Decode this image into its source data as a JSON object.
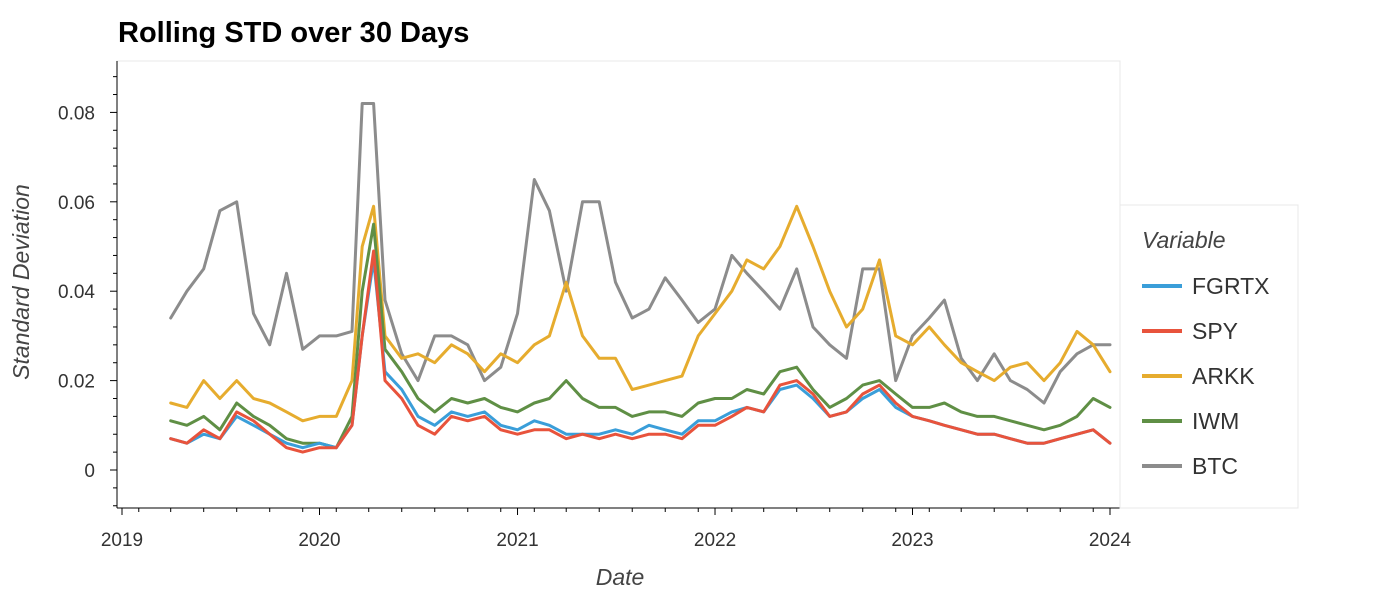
{
  "chart_data": {
    "type": "line",
    "title": "Rolling STD over 30 Days",
    "xlabel": "Date",
    "ylabel": "Standard Deviation",
    "x_ticks": [
      "2019",
      "2020",
      "2021",
      "2022",
      "2023",
      "2024"
    ],
    "y_ticks": [
      "0",
      "0.02",
      "0.04",
      "0.06",
      "0.08"
    ],
    "xlim": [
      "2019-01-01",
      "2024-01-01"
    ],
    "ylim": [
      -0.0085,
      0.0915
    ],
    "grid": false,
    "legend": {
      "title": "Variable",
      "placement": "right"
    },
    "x": [
      "2019-04-01",
      "2019-05-01",
      "2019-06-01",
      "2019-07-01",
      "2019-08-01",
      "2019-09-01",
      "2019-10-01",
      "2019-11-01",
      "2019-12-01",
      "2020-01-01",
      "2020-02-01",
      "2020-03-01",
      "2020-03-20",
      "2020-04-10",
      "2020-05-01",
      "2020-06-01",
      "2020-07-01",
      "2020-08-01",
      "2020-09-01",
      "2020-10-01",
      "2020-11-01",
      "2020-12-01",
      "2021-01-01",
      "2021-02-01",
      "2021-03-01",
      "2021-04-01",
      "2021-05-01",
      "2021-06-01",
      "2021-07-01",
      "2021-08-01",
      "2021-09-01",
      "2021-10-01",
      "2021-11-01",
      "2021-12-01",
      "2022-01-01",
      "2022-02-01",
      "2022-03-01",
      "2022-04-01",
      "2022-05-01",
      "2022-06-01",
      "2022-07-01",
      "2022-08-01",
      "2022-09-01",
      "2022-10-01",
      "2022-11-01",
      "2022-12-01",
      "2023-01-01",
      "2023-02-01",
      "2023-03-01",
      "2023-04-01",
      "2023-05-01",
      "2023-06-01",
      "2023-07-01",
      "2023-08-01",
      "2023-09-01",
      "2023-10-01",
      "2023-11-01",
      "2023-12-01",
      "2024-01-01"
    ],
    "series": [
      {
        "name": "FGRTX",
        "color": "#3a9ed9",
        "values": [
          0.007,
          0.006,
          0.008,
          0.007,
          0.012,
          0.01,
          0.008,
          0.006,
          0.005,
          0.006,
          0.005,
          0.01,
          0.03,
          0.047,
          0.022,
          0.018,
          0.012,
          0.01,
          0.013,
          0.012,
          0.013,
          0.01,
          0.009,
          0.011,
          0.01,
          0.008,
          0.008,
          0.008,
          0.009,
          0.008,
          0.01,
          0.009,
          0.008,
          0.011,
          0.011,
          0.013,
          0.014,
          0.013,
          0.018,
          0.019,
          0.016,
          0.012,
          0.013,
          0.016,
          0.018,
          0.014,
          0.012,
          0.011,
          0.01,
          0.009,
          0.008,
          0.008,
          0.007,
          0.006,
          0.006,
          0.007,
          0.008,
          0.009,
          0.006
        ]
      },
      {
        "name": "SPY",
        "color": "#e8533c",
        "values": [
          0.007,
          0.006,
          0.009,
          0.007,
          0.013,
          0.011,
          0.008,
          0.005,
          0.004,
          0.005,
          0.005,
          0.01,
          0.03,
          0.049,
          0.02,
          0.016,
          0.01,
          0.008,
          0.012,
          0.011,
          0.012,
          0.009,
          0.008,
          0.009,
          0.009,
          0.007,
          0.008,
          0.007,
          0.008,
          0.007,
          0.008,
          0.008,
          0.007,
          0.01,
          0.01,
          0.012,
          0.014,
          0.013,
          0.019,
          0.02,
          0.017,
          0.012,
          0.013,
          0.017,
          0.019,
          0.015,
          0.012,
          0.011,
          0.01,
          0.009,
          0.008,
          0.008,
          0.007,
          0.006,
          0.006,
          0.007,
          0.008,
          0.009,
          0.006
        ]
      },
      {
        "name": "ARKK",
        "color": "#e6ac2e",
        "values": [
          0.015,
          0.014,
          0.02,
          0.016,
          0.02,
          0.016,
          0.015,
          0.013,
          0.011,
          0.012,
          0.012,
          0.02,
          0.05,
          0.059,
          0.03,
          0.025,
          0.026,
          0.024,
          0.028,
          0.026,
          0.022,
          0.026,
          0.024,
          0.028,
          0.03,
          0.042,
          0.03,
          0.025,
          0.025,
          0.018,
          0.019,
          0.02,
          0.021,
          0.03,
          0.035,
          0.04,
          0.047,
          0.045,
          0.05,
          0.059,
          0.05,
          0.04,
          0.032,
          0.036,
          0.047,
          0.03,
          0.028,
          0.032,
          0.028,
          0.024,
          0.022,
          0.02,
          0.023,
          0.024,
          0.02,
          0.024,
          0.031,
          0.028,
          0.022
        ]
      },
      {
        "name": "IWM",
        "color": "#5f8f45",
        "values": [
          0.011,
          0.01,
          0.012,
          0.009,
          0.015,
          0.012,
          0.01,
          0.007,
          0.006,
          0.006,
          0.005,
          0.012,
          0.04,
          0.055,
          0.027,
          0.022,
          0.016,
          0.013,
          0.016,
          0.015,
          0.016,
          0.014,
          0.013,
          0.015,
          0.016,
          0.02,
          0.016,
          0.014,
          0.014,
          0.012,
          0.013,
          0.013,
          0.012,
          0.015,
          0.016,
          0.016,
          0.018,
          0.017,
          0.022,
          0.023,
          0.018,
          0.014,
          0.016,
          0.019,
          0.02,
          0.017,
          0.014,
          0.014,
          0.015,
          0.013,
          0.012,
          0.012,
          0.011,
          0.01,
          0.009,
          0.01,
          0.012,
          0.016,
          0.014
        ]
      },
      {
        "name": "BTC",
        "color": "#8c8c8c",
        "values": [
          0.034,
          0.04,
          0.045,
          0.058,
          0.06,
          0.035,
          0.028,
          0.044,
          0.027,
          0.03,
          0.03,
          0.031,
          0.082,
          0.082,
          0.038,
          0.026,
          0.02,
          0.03,
          0.03,
          0.028,
          0.02,
          0.023,
          0.035,
          0.065,
          0.058,
          0.04,
          0.06,
          0.06,
          0.042,
          0.034,
          0.036,
          0.043,
          0.038,
          0.033,
          0.036,
          0.048,
          0.044,
          0.04,
          0.036,
          0.045,
          0.032,
          0.028,
          0.025,
          0.045,
          0.045,
          0.02,
          0.03,
          0.034,
          0.038,
          0.025,
          0.02,
          0.026,
          0.02,
          0.018,
          0.015,
          0.022,
          0.026,
          0.028,
          0.028
        ]
      }
    ]
  }
}
